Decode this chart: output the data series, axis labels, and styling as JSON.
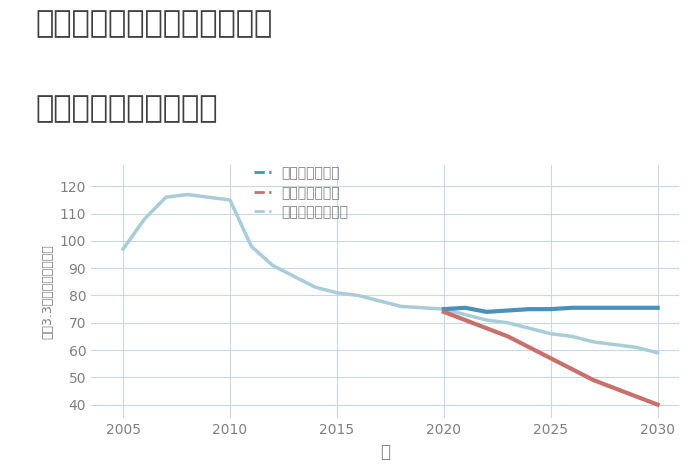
{
  "title_line1": "奈良県磯城郡三宅町上但馬の",
  "title_line2": "中古戸建ての価格推移",
  "xlabel": "年",
  "ylabel": "坪（3.3㎡）単価（万円）",
  "background_color": "#ffffff",
  "plot_bg_color": "#ffffff",
  "grid_color": "#c8d8e8",
  "xlim": [
    2003.5,
    2031
  ],
  "ylim": [
    35,
    128
  ],
  "yticks": [
    40,
    50,
    60,
    70,
    80,
    90,
    100,
    110,
    120
  ],
  "xticks": [
    2005,
    2010,
    2015,
    2020,
    2025,
    2030
  ],
  "normal_scenario": {
    "x": [
      2005,
      2006,
      2007,
      2008,
      2009,
      2010,
      2011,
      2012,
      2013,
      2014,
      2015,
      2016,
      2017,
      2018,
      2019,
      2020,
      2021,
      2022,
      2023,
      2024,
      2025,
      2026,
      2027,
      2028,
      2029,
      2030
    ],
    "y": [
      97,
      108,
      116,
      117,
      116,
      115,
      98,
      91,
      87,
      83,
      81,
      80,
      78,
      76,
      75.5,
      75,
      73,
      71,
      70,
      68,
      66,
      65,
      63,
      62,
      61,
      59
    ],
    "color": "#a8cdd8",
    "linewidth": 2.5,
    "label": "ノーマルシナリオ"
  },
  "good_scenario": {
    "x": [
      2020,
      2021,
      2022,
      2023,
      2024,
      2025,
      2026,
      2027,
      2028,
      2029,
      2030
    ],
    "y": [
      75,
      75.5,
      74,
      74.5,
      75,
      75,
      75.5,
      75.5,
      75.5,
      75.5,
      75.5
    ],
    "color": "#4a90b8",
    "linewidth": 3.0,
    "label": "グッドシナリオ"
  },
  "bad_scenario": {
    "x": [
      2020,
      2021,
      2022,
      2023,
      2024,
      2025,
      2026,
      2027,
      2028,
      2029,
      2030
    ],
    "y": [
      74,
      71,
      68,
      65,
      61,
      57,
      53,
      49,
      46,
      43,
      40
    ],
    "color": "#c8706a",
    "linewidth": 3.0,
    "label": "バッドシナリオ"
  },
  "title_color": "#404040",
  "title_fontsize": 22,
  "axis_label_color": "#808080",
  "tick_color": "#808080",
  "legend_fontsize": 10,
  "fig_width": 7.0,
  "fig_height": 4.7,
  "dpi": 100
}
